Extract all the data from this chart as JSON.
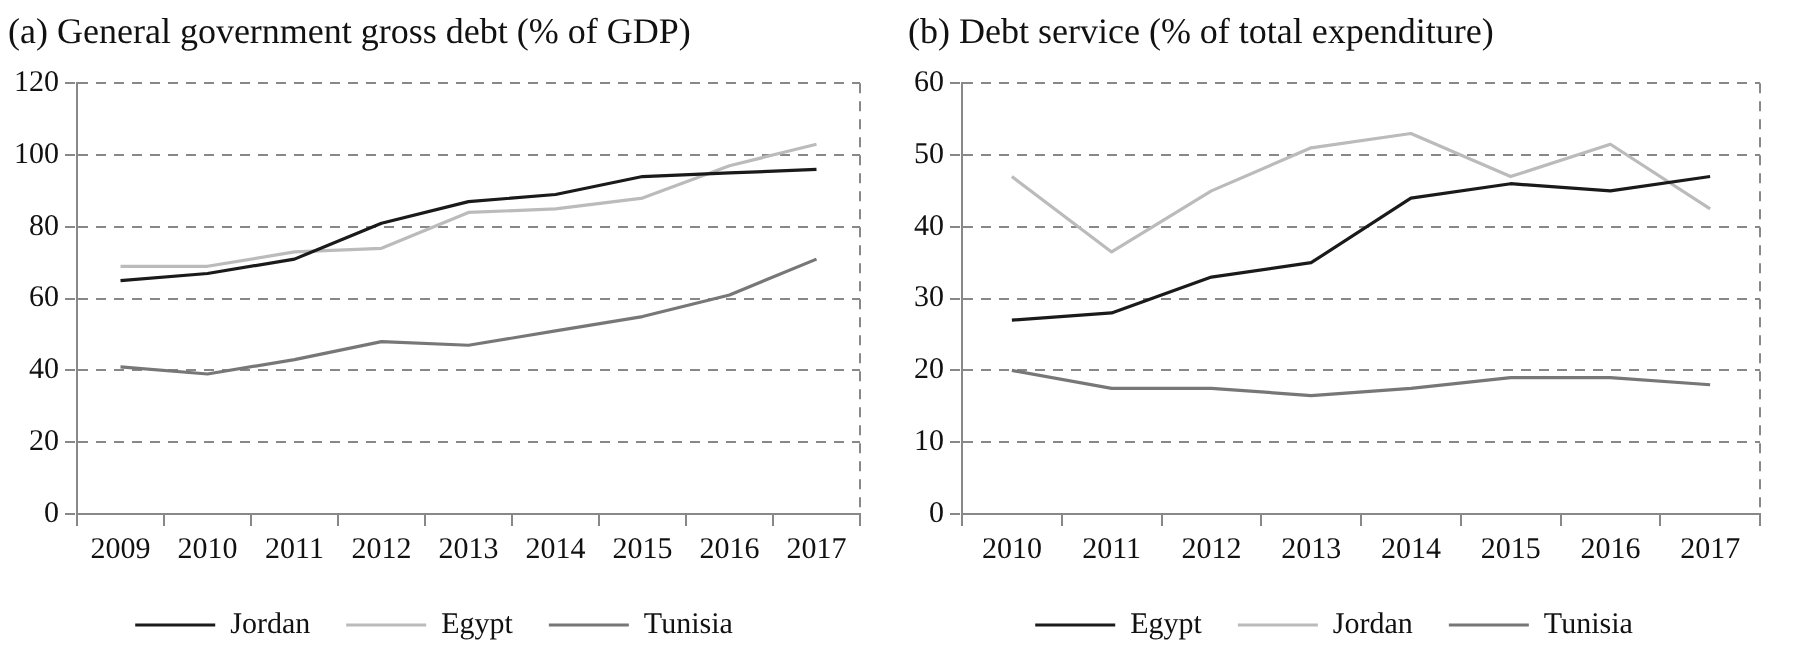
{
  "chart_data": [
    {
      "type": "line",
      "title": "(a) General government gross debt (% of GDP)",
      "categories": [
        "2009",
        "2010",
        "2011",
        "2012",
        "2013",
        "2014",
        "2015",
        "2016",
        "2017"
      ],
      "series": [
        {
          "name": "Jordan",
          "color": "#1a1a1a",
          "values": [
            65,
            67,
            71,
            81,
            87,
            89,
            94,
            95,
            96
          ]
        },
        {
          "name": "Egypt",
          "color": "#bbbbbb",
          "values": [
            69,
            69,
            73,
            74,
            84,
            85,
            88,
            97,
            103
          ]
        },
        {
          "name": "Tunisia",
          "color": "#777777",
          "values": [
            41,
            39,
            43,
            48,
            47,
            51,
            55,
            61,
            71
          ]
        }
      ],
      "ylim": [
        0,
        120
      ],
      "yticks": [
        0,
        20,
        40,
        60,
        80,
        100,
        120
      ],
      "grid": "y",
      "legend": "bottom",
      "marker": "none",
      "line_style": "solid"
    },
    {
      "type": "line",
      "title": "(b) Debt service (% of total expenditure)",
      "categories": [
        "2010",
        "2011",
        "2012",
        "2013",
        "2014",
        "2015",
        "2016",
        "2017"
      ],
      "series": [
        {
          "name": "Egypt",
          "color": "#1a1a1a",
          "values": [
            27,
            28,
            33,
            35,
            44,
            46,
            45,
            47
          ]
        },
        {
          "name": "Jordan",
          "color": "#bbbbbb",
          "values": [
            47,
            36.5,
            45,
            51,
            53,
            47,
            51.5,
            42.5
          ]
        },
        {
          "name": "Tunisia",
          "color": "#777777",
          "values": [
            20,
            17.5,
            17.5,
            16.5,
            17.5,
            19,
            19,
            18
          ]
        }
      ],
      "ylim": [
        0,
        60
      ],
      "yticks": [
        0,
        10,
        20,
        30,
        40,
        50,
        60
      ],
      "grid": "y",
      "legend": "bottom",
      "marker": "none",
      "line_style": "solid"
    }
  ]
}
